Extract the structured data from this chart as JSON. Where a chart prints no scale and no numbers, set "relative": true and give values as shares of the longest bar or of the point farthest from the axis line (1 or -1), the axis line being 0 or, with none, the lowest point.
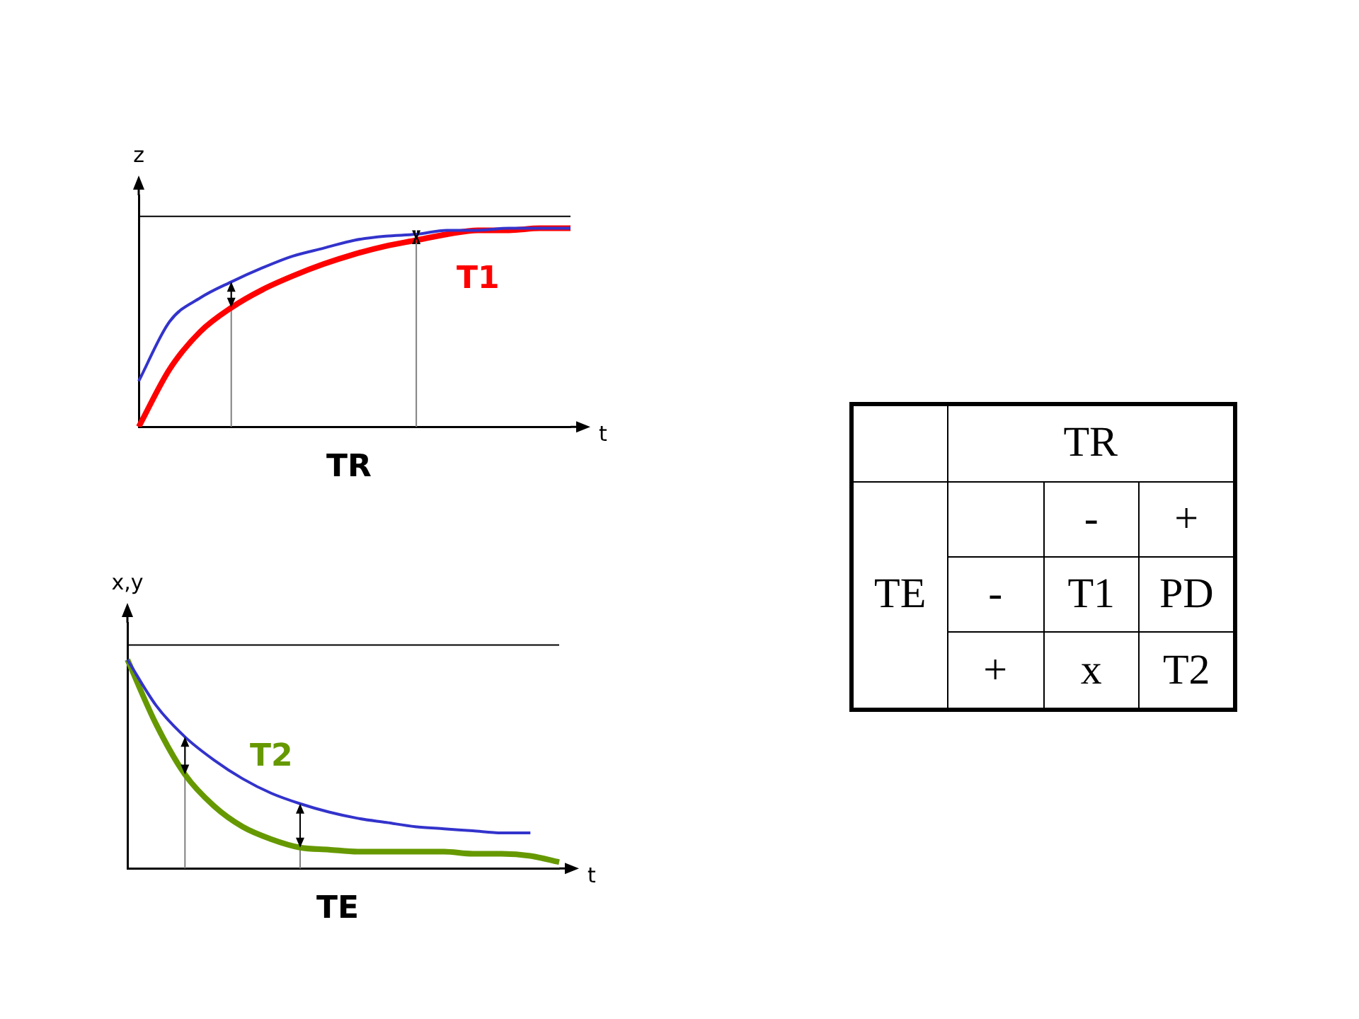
{
  "chart_data": [
    {
      "type": "line",
      "title": "TR",
      "xlabel": "t",
      "ylabel": "z",
      "relative": true,
      "marker": "none",
      "categories": [
        null,
        null,
        null,
        null,
        null,
        null,
        null,
        null,
        null,
        null,
        null,
        null,
        null,
        null,
        null
      ],
      "series": [
        {
          "color": "#3333cc",
          "values": [
            0.23,
            0.53,
            0.65,
            0.73,
            0.8,
            0.86,
            0.9,
            0.94,
            0.96,
            0.97,
            0.99,
            0.99,
            1,
            1,
            1
          ]
        },
        {
          "name": "T1",
          "color": "#ff0000",
          "values": [
            0,
            0.29,
            0.48,
            0.6,
            0.69,
            0.76,
            0.82,
            0.87,
            0.91,
            0.94,
            0.97,
            0.99,
            0.99,
            1,
            1
          ]
        }
      ],
      "ref_lines": [
        {
          "axis": "y",
          "value": 1.06,
          "color": "#000000"
        }
      ]
    },
    {
      "type": "line",
      "title": "TE",
      "xlabel": "t",
      "ylabel": "x,y",
      "relative": true,
      "marker": "none",
      "categories": [
        null,
        null,
        null,
        null,
        null,
        null,
        null,
        null,
        null,
        null,
        null,
        null,
        null,
        null,
        null,
        null
      ],
      "series": [
        {
          "color": "#3333cc",
          "values": [
            1,
            0.78,
            0.63,
            0.52,
            0.43,
            0.36,
            0.31,
            0.27,
            0.24,
            0.22,
            0.2,
            0.19,
            0.18,
            0.17,
            0.17,
            null
          ]
        },
        {
          "name": "T2",
          "color": "#669900",
          "values": [
            1,
            0.69,
            0.45,
            0.3,
            0.2,
            0.14,
            0.1,
            0.09,
            0.08,
            0.08,
            0.08,
            0.08,
            0.07,
            0.07,
            0.06,
            0.03
          ]
        }
      ],
      "ref_lines": [
        {
          "axis": "y",
          "value": 1.07,
          "color": "#000000"
        }
      ]
    },
    {
      "type": "other",
      "xlabel": "TR",
      "ylabel": "TE",
      "categories": [
        "-",
        "+"
      ],
      "y_categories": [
        "-",
        "+"
      ],
      "cell_labels": [
        [
          "T1",
          "PD"
        ],
        [
          "x",
          "T2"
        ]
      ]
    }
  ]
}
